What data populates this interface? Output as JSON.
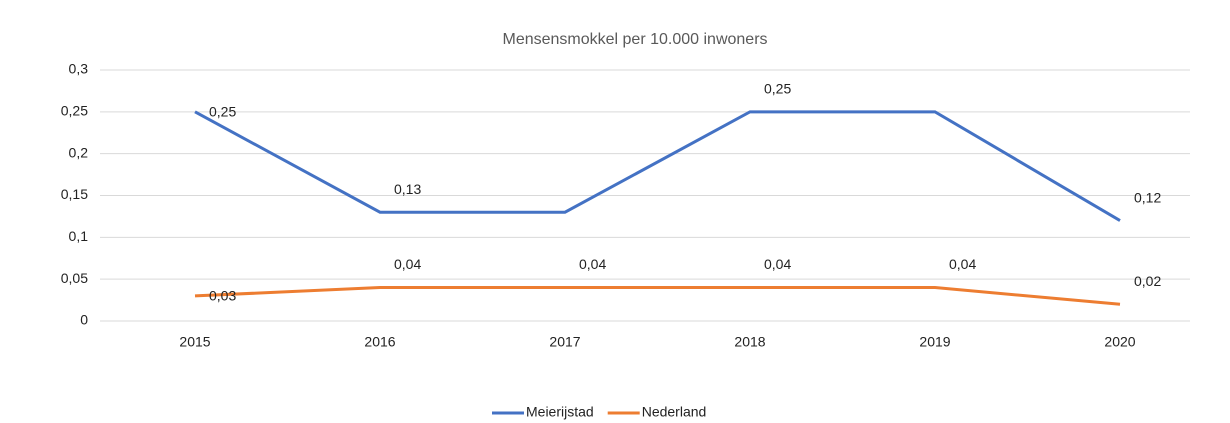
{
  "chart_data": {
    "type": "line",
    "title": "Mensensmokkel per 10.000 inwoners",
    "categories": [
      "2015",
      "2016",
      "2017",
      "2018",
      "2019",
      "2020"
    ],
    "series": [
      {
        "name": "Meierijstad",
        "color": "#4472c4",
        "values": [
          0.25,
          0.13,
          0.13,
          0.25,
          0.25,
          0.12
        ],
        "value_labels": [
          "0,25",
          "0,13",
          null,
          "0,25",
          null,
          "0,12"
        ]
      },
      {
        "name": "Nederland",
        "color": "#ed7d31",
        "values": [
          0.03,
          0.04,
          0.04,
          0.04,
          0.04,
          0.02
        ],
        "value_labels": [
          "0,03",
          "0,04",
          "0,04",
          "0,04",
          "0,04",
          "0,02"
        ]
      }
    ],
    "ylim": [
      0,
      0.3
    ],
    "yticks": [
      0,
      {
        "value": 0.05,
        "label": "0,05"
      },
      {
        "value": 0.1,
        "label": "0,1"
      },
      {
        "value": 0.15,
        "label": "0,15"
      },
      {
        "value": 0.2,
        "label": "0,2"
      },
      {
        "value": 0.25,
        "label": "0,25"
      },
      {
        "value": 0.3,
        "label": "0,3"
      }
    ],
    "grid": true,
    "legend": "bottom"
  }
}
